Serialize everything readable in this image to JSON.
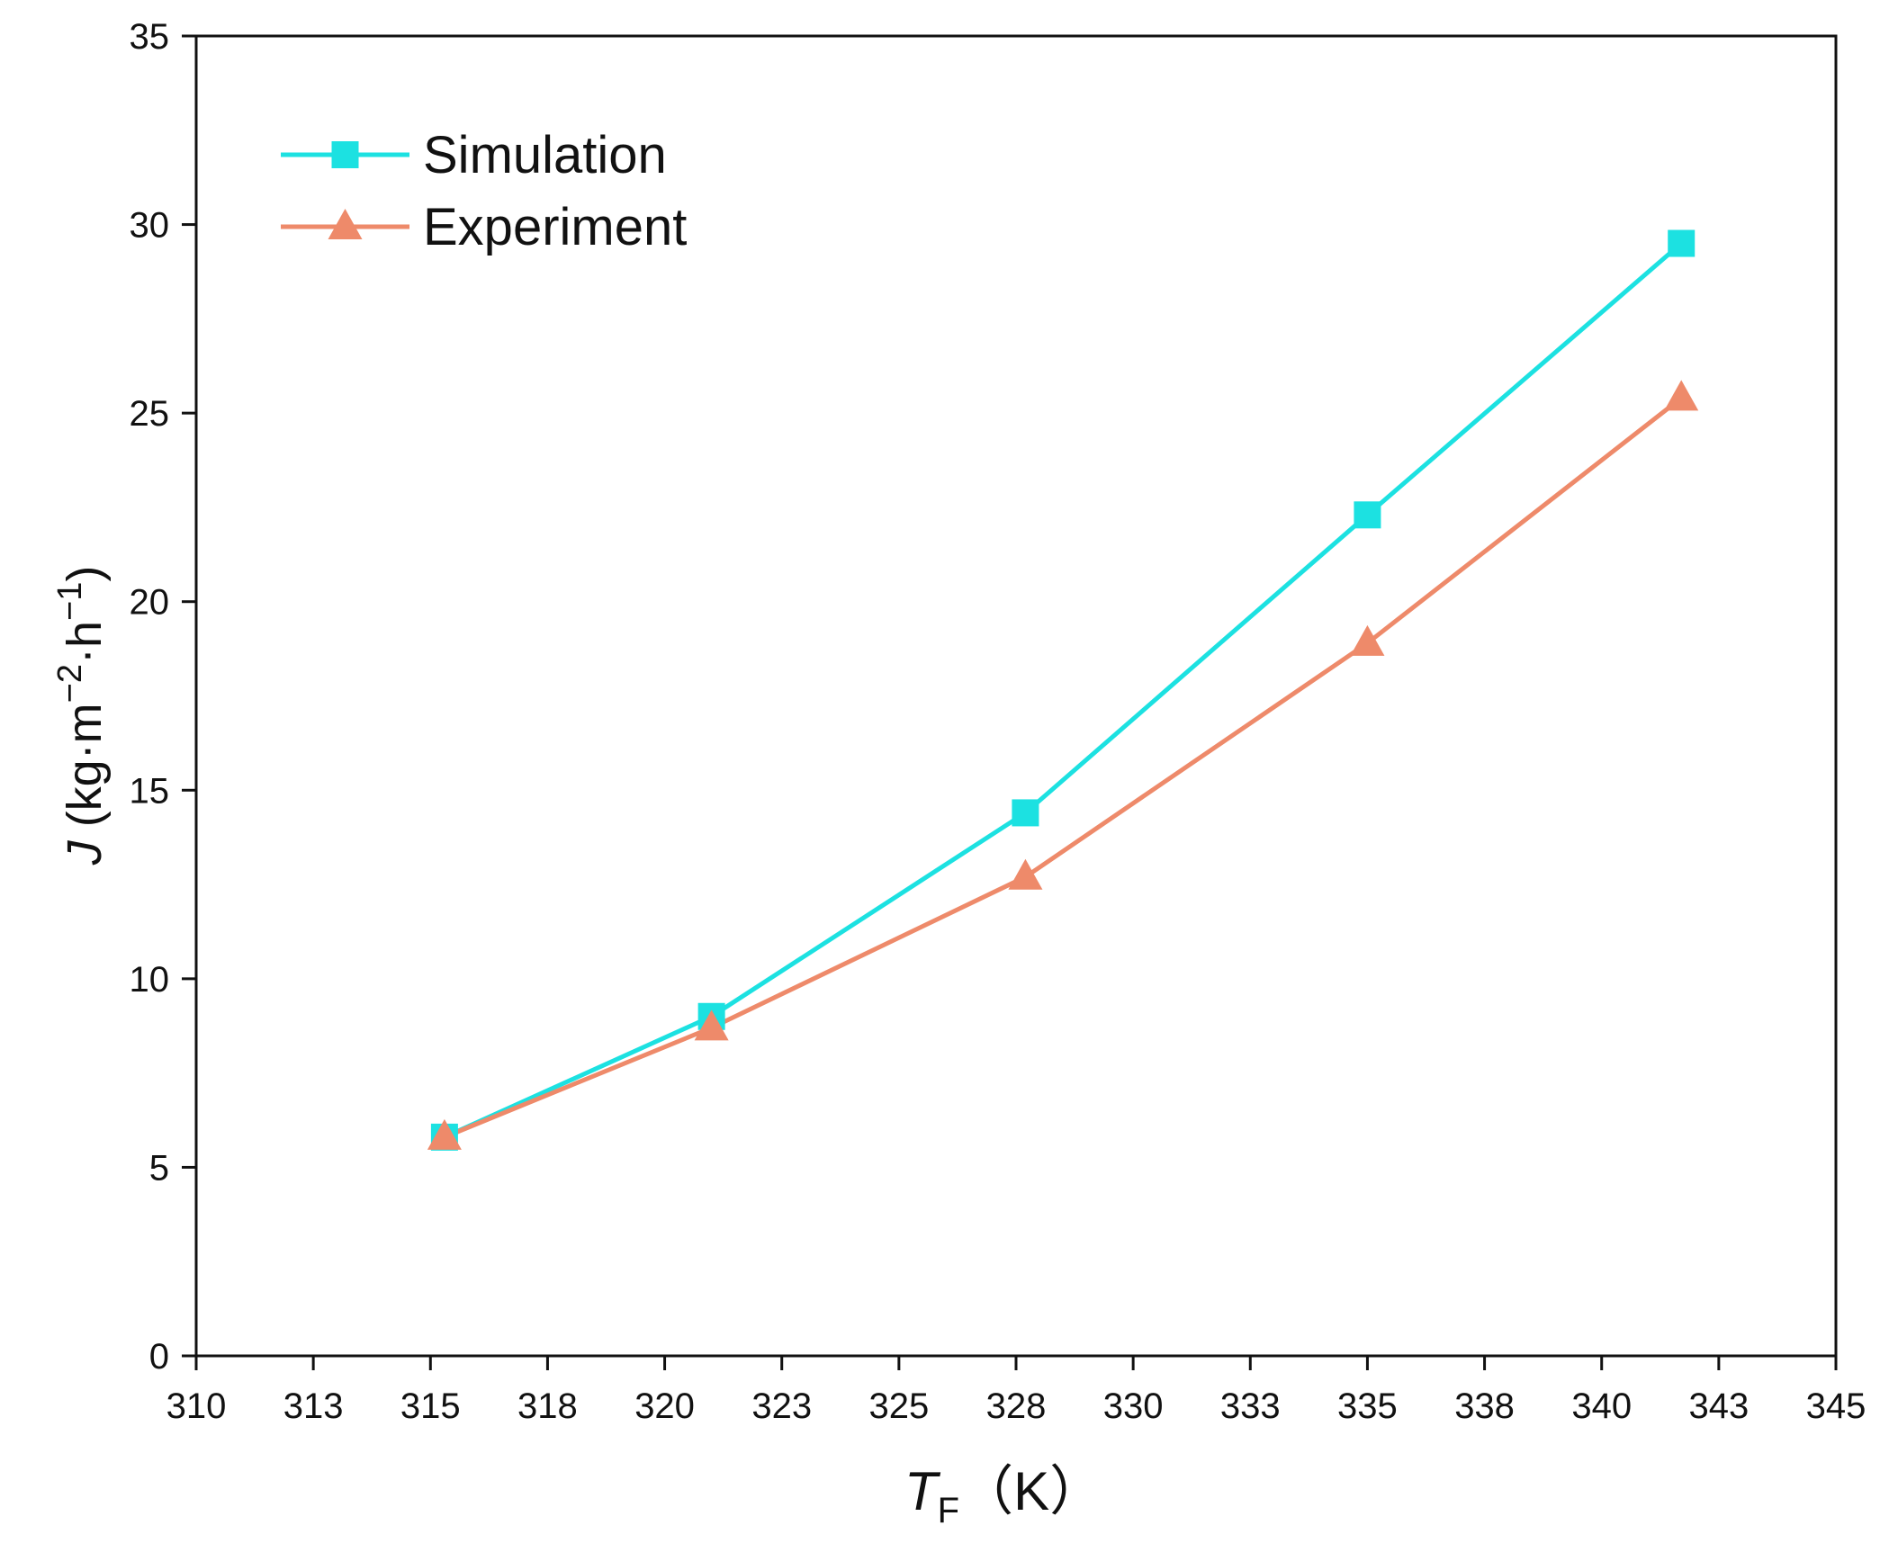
{
  "chart_data": {
    "type": "line",
    "title": "",
    "xlabel": {
      "main": "T",
      "sub": "F",
      "unit": "（K）"
    },
    "ylabel": {
      "italic": "J",
      "prefix": " (kg·m",
      "exp1": "−2",
      "mid": "·h",
      "exp2": "−1",
      "suffix": ")"
    },
    "xlim": [
      310,
      345
    ],
    "ylim": [
      0,
      35
    ],
    "x_ticks": [
      {
        "value": 310,
        "label": "310"
      },
      {
        "value": 312.5,
        "label": "313"
      },
      {
        "value": 315,
        "label": "315"
      },
      {
        "value": 317.5,
        "label": "318"
      },
      {
        "value": 320,
        "label": "320"
      },
      {
        "value": 322.5,
        "label": "323"
      },
      {
        "value": 325,
        "label": "325"
      },
      {
        "value": 327.5,
        "label": "328"
      },
      {
        "value": 330,
        "label": "330"
      },
      {
        "value": 332.5,
        "label": "333"
      },
      {
        "value": 335,
        "label": "335"
      },
      {
        "value": 337.5,
        "label": "338"
      },
      {
        "value": 340,
        "label": "340"
      },
      {
        "value": 342.5,
        "label": "343"
      },
      {
        "value": 345,
        "label": "345"
      }
    ],
    "y_ticks": [
      {
        "value": 0,
        "label": "0"
      },
      {
        "value": 5,
        "label": "5"
      },
      {
        "value": 10,
        "label": "10"
      },
      {
        "value": 15,
        "label": "15"
      },
      {
        "value": 20,
        "label": "20"
      },
      {
        "value": 25,
        "label": "25"
      },
      {
        "value": 30,
        "label": "30"
      },
      {
        "value": 35,
        "label": "35"
      }
    ],
    "legend_position": "top-left",
    "series": [
      {
        "name": "Simulation",
        "marker": "square",
        "color": "#1ce1e1",
        "x": [
          315.3,
          321.0,
          327.7,
          335.0,
          341.7
        ],
        "y": [
          5.8,
          9.0,
          14.4,
          22.3,
          29.5
        ]
      },
      {
        "name": "Experiment",
        "marker": "triangle",
        "color": "#ee8a6a",
        "x": [
          315.3,
          321.0,
          327.7,
          335.0,
          341.7
        ],
        "y": [
          5.8,
          8.7,
          12.7,
          18.9,
          25.4
        ]
      }
    ]
  }
}
